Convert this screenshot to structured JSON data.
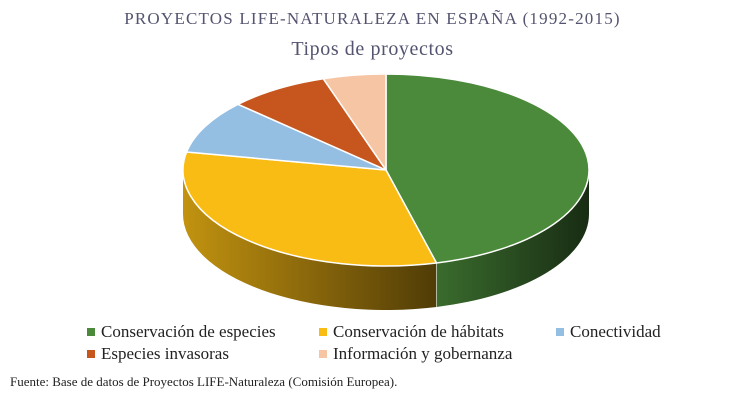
{
  "chart_data": {
    "type": "pie",
    "title": "PROYECTOS LIFE-NATURALEZA EN ESPAÑA (1992-2015)",
    "subtitle": "Tipos de proyectos",
    "three_d": true,
    "legend_position": "bottom",
    "slices": [
      {
        "label": "Conservación de especies",
        "value": 46,
        "color": "#4a8a3a"
      },
      {
        "label": "Conservación de hábitats",
        "value": 32,
        "color": "#f9bc14"
      },
      {
        "label": "Conectividad",
        "value": 9,
        "color": "#94bfe3"
      },
      {
        "label": "Especies invasoras",
        "value": 8,
        "color": "#c7561e"
      },
      {
        "label": "Información y gobernanza",
        "value": 5,
        "color": "#f6c6a4"
      }
    ]
  },
  "source": "Fuente: Base de datos de Proyectos LIFE-Naturaleza (Comisión Europea)."
}
